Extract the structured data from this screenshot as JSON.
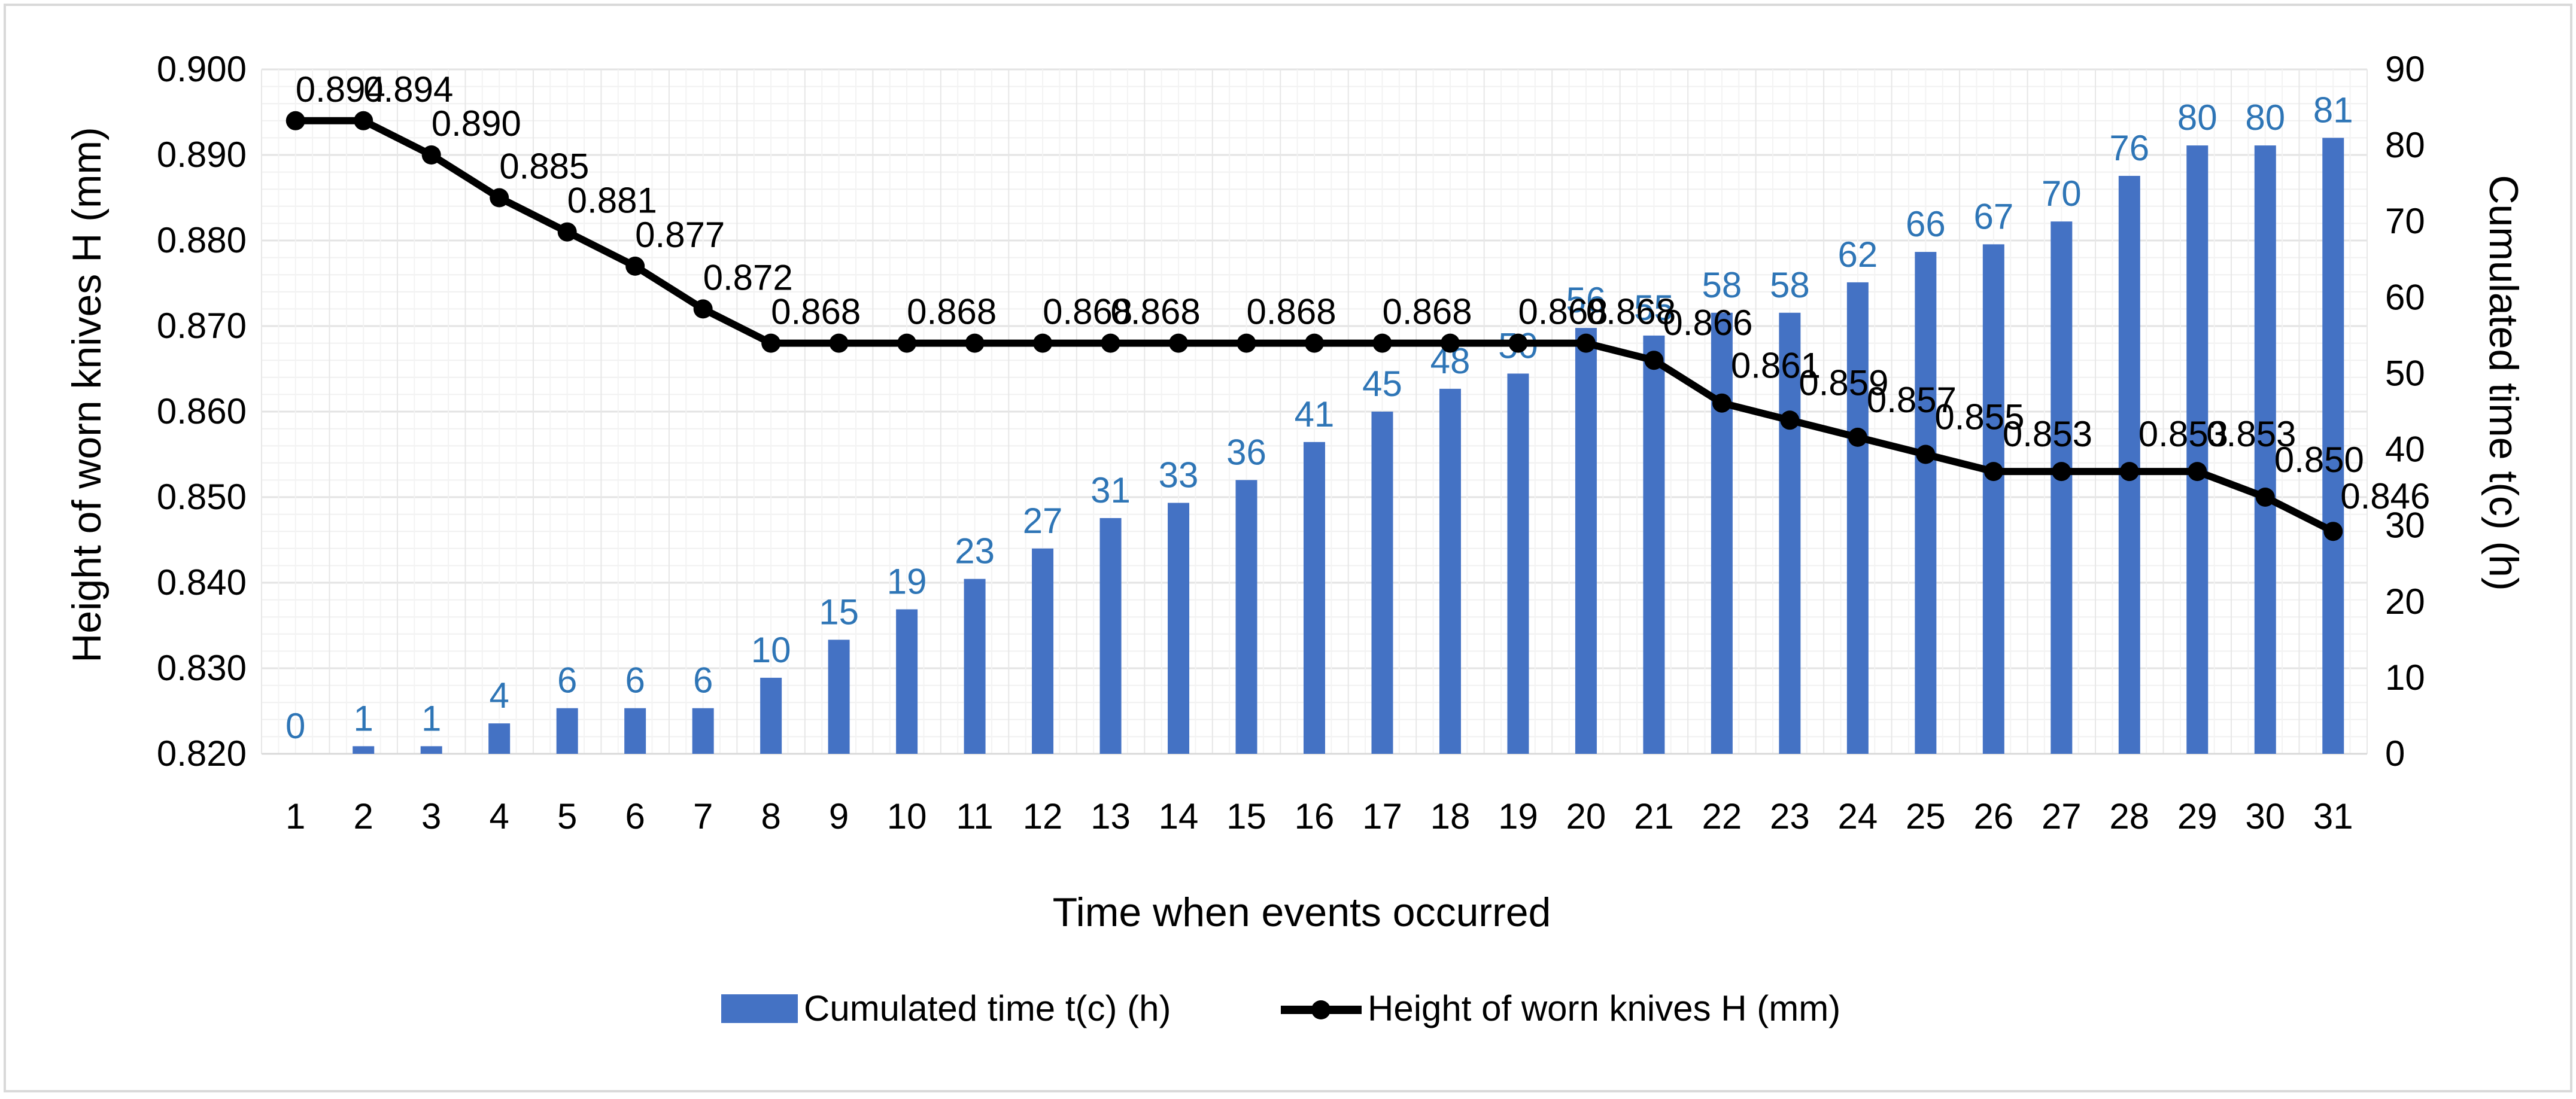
{
  "chart_data": {
    "type": "bar",
    "title": "",
    "categories": [
      "1",
      "2",
      "3",
      "4",
      "5",
      "6",
      "7",
      "8",
      "9",
      "10",
      "11",
      "12",
      "13",
      "14",
      "15",
      "16",
      "17",
      "18",
      "19",
      "20",
      "21",
      "22",
      "23",
      "24",
      "25",
      "26",
      "27",
      "28",
      "29",
      "30",
      "31"
    ],
    "xlabel": "Time when events occurred",
    "series": [
      {
        "name": "Cumulated time t(c) (h)",
        "type": "bar",
        "axis": "right",
        "color": "#4472C4",
        "label_color": "#2E75B6",
        "values": [
          0,
          1,
          1,
          4,
          6,
          6,
          6,
          10,
          15,
          19,
          23,
          27,
          31,
          33,
          36,
          41,
          45,
          48,
          50,
          56,
          55,
          58,
          58,
          62,
          66,
          67,
          70,
          76,
          80,
          80,
          81
        ],
        "labels": [
          "0",
          "1",
          "1",
          "4",
          "6",
          "6",
          "6",
          "10",
          "15",
          "19",
          "23",
          "27",
          "31",
          "33",
          "36",
          "41",
          "45",
          "48",
          "50",
          "56",
          "55",
          "58",
          "58",
          "62",
          "66",
          "67",
          "70",
          "76",
          "80",
          "80",
          "81"
        ]
      },
      {
        "name": "Height of worn knives H (mm)",
        "type": "line",
        "axis": "left",
        "color": "#000000",
        "values": [
          0.894,
          0.894,
          0.89,
          0.885,
          0.881,
          0.877,
          0.872,
          0.868,
          0.868,
          0.868,
          0.868,
          0.868,
          0.868,
          0.868,
          0.868,
          0.868,
          0.868,
          0.868,
          0.868,
          0.868,
          0.866,
          0.861,
          0.859,
          0.857,
          0.855,
          0.853,
          0.853,
          0.853,
          0.853,
          0.85,
          0.846
        ],
        "labels": [
          "0.894",
          "0.894",
          "0.890",
          "0.885",
          "0.881",
          "0.877",
          "0.872",
          "0.868",
          "",
          "0.868",
          "",
          "0.868",
          "0.868",
          "",
          "0.868",
          "",
          "0.868",
          "",
          "0.868",
          "0.868",
          "0.866",
          "0.861",
          "0.859",
          "0.857",
          "0.855",
          "0.853",
          "",
          "0.853",
          "0.853",
          "0.850",
          "0.846"
        ]
      }
    ],
    "y_left": {
      "label": "Height of worn knives H (mm)",
      "min": 0.82,
      "max": 0.9,
      "ticks": [
        "0.820",
        "0.830",
        "0.840",
        "0.850",
        "0.860",
        "0.870",
        "0.880",
        "0.890",
        "0.900"
      ]
    },
    "y_right": {
      "label": "Cumulated time t(c) (h)",
      "min": 0,
      "max": 90,
      "ticks": [
        "0",
        "10",
        "20",
        "30",
        "40",
        "50",
        "60",
        "70",
        "80",
        "90"
      ]
    },
    "grid": true,
    "legend": {
      "position": "bottom",
      "items": [
        "Cumulated time t(c) (h)",
        "Height of worn knives H (mm)"
      ]
    }
  }
}
